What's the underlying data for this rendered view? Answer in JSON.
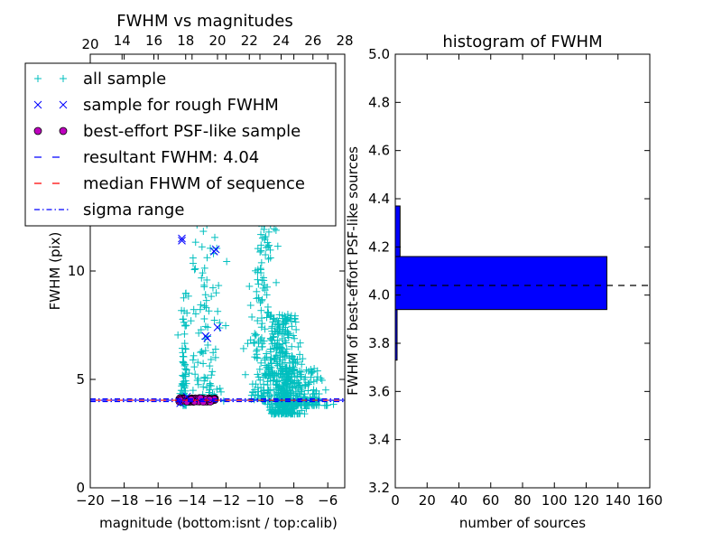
{
  "chart_data": [
    {
      "type": "scatter",
      "title": "FWHM vs magnitudes",
      "xlabel": "magnitude (bottom:isnt / top:calib)",
      "ylabel": "FWHM (pix)",
      "xlim": [
        -20,
        -5
      ],
      "ylim": [
        0,
        20
      ],
      "x_ticks": [
        -20,
        -18,
        -16,
        -14,
        -12,
        -10,
        -8,
        -6
      ],
      "y_ticks": [
        0,
        5,
        10
      ],
      "top_xlim": [
        12,
        28
      ],
      "top_x_ticks": [
        14,
        16,
        18,
        20,
        22,
        24,
        26,
        28
      ],
      "top_x_tick_label_extra": "20",
      "legend_placement": "upper-left",
      "legend": [
        {
          "label": "all sample",
          "marker": "+",
          "color": "#00bfbf"
        },
        {
          "label": "sample for rough FWHM",
          "marker": "x",
          "color": "#0000ff"
        },
        {
          "label": "best-effort PSF-like sample",
          "marker": "o",
          "color": "#bf00bf"
        },
        {
          "label": "resultant FWHM: 4.04",
          "linestyle": "dashed",
          "color": "#0000ff"
        },
        {
          "label": "median FHWM of sequence",
          "linestyle": "dashed",
          "color": "#ff0000"
        },
        {
          "label": "sigma range",
          "linestyle": "dashdot",
          "color": "#0000ff"
        }
      ],
      "resultant_fwhm": 4.04,
      "median_fwhm": 4.04,
      "sigma_range": [
        3.98,
        4.1
      ],
      "rough_sample_points": [
        [
          -14.6,
          11.5
        ],
        [
          -14.6,
          11.4
        ],
        [
          -12.6,
          11.0
        ],
        [
          -12.7,
          10.9
        ],
        [
          -13.2,
          7.0
        ],
        [
          -13.1,
          6.9
        ],
        [
          -12.5,
          7.4
        ],
        [
          -14.3,
          4.2
        ],
        [
          -14.7,
          3.9
        ]
      ],
      "psf_sample": {
        "x_range": [
          -14.8,
          -12.6
        ],
        "y_range": [
          3.95,
          4.15
        ]
      },
      "all_sample_clusters": [
        {
          "x_center": -14.5,
          "x_spread": 0.25,
          "y_min": 3.8,
          "y_max": 9.0,
          "count": 70
        },
        {
          "x_center": -13.2,
          "x_spread": 1.0,
          "y_min": 4.0,
          "y_max": 15.0,
          "count": 130
        },
        {
          "x_center": -9.8,
          "x_spread": 0.8,
          "y_min": 4.0,
          "y_max": 15.5,
          "count": 200
        },
        {
          "x_center": -8.6,
          "x_spread": 0.9,
          "y_min": 3.4,
          "y_max": 8.0,
          "count": 380
        },
        {
          "x_center": -7.5,
          "x_spread": 1.3,
          "y_min": 3.8,
          "y_max": 5.5,
          "count": 160
        }
      ]
    },
    {
      "type": "bar",
      "orientation": "horizontal",
      "title": "histogram of FWHM",
      "xlabel": "number of sources",
      "ylabel": "FWHM of best-effort PSF-like sources",
      "xlim": [
        0,
        160
      ],
      "ylim": [
        3.2,
        5.0
      ],
      "x_ticks": [
        0,
        20,
        40,
        60,
        80,
        100,
        120,
        140,
        160
      ],
      "y_ticks": [
        3.2,
        3.4,
        3.6,
        3.8,
        4.0,
        4.2,
        4.4,
        4.6,
        4.8,
        5.0
      ],
      "bars": [
        {
          "y0": 3.73,
          "y1": 3.94,
          "value": 1
        },
        {
          "y0": 3.94,
          "y1": 4.16,
          "value": 133
        },
        {
          "y0": 4.16,
          "y1": 4.37,
          "value": 3
        }
      ],
      "reference_line": 4.04,
      "color": "#0000ff"
    }
  ]
}
